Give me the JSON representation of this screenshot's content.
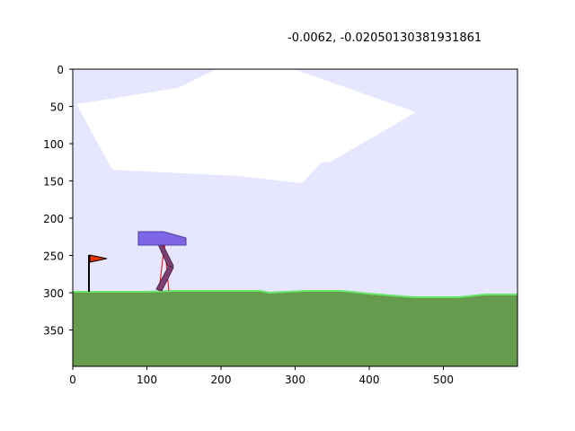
{
  "title": "-0.0062, -0.02050130381931861",
  "axes": {
    "x_ticks": [
      "0",
      "100",
      "200",
      "300",
      "400",
      "500"
    ],
    "y_ticks": [
      "0",
      "50",
      "100",
      "150",
      "200",
      "250",
      "300",
      "350"
    ]
  },
  "colors": {
    "sky": "#e6e6ff",
    "cloud": "#ffffff",
    "ground": "#669a4c",
    "grass_edge": "#66e666",
    "hull": "#7f66e6",
    "hull_outline": "#4c3f99",
    "leg": "#7f3f74",
    "lidar": "#ff0000",
    "flag": "#e63300",
    "flag_pole": "#000000"
  },
  "icons": {
    "flag": "flag-icon",
    "walker": "bipedal-walker"
  }
}
